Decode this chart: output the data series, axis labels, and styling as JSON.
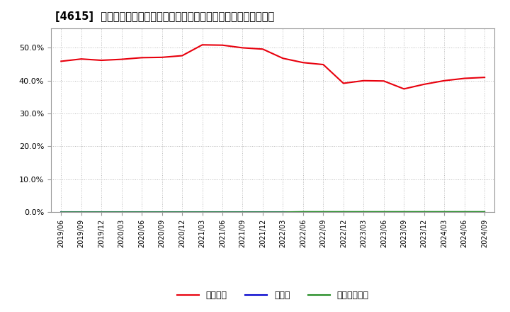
{
  "title": "[4615]  自己資本、のれん、繰延税金資産の総資産に対する比率の推移",
  "x_labels": [
    "2019/06",
    "2019/09",
    "2019/12",
    "2020/03",
    "2020/06",
    "2020/09",
    "2020/12",
    "2021/03",
    "2021/06",
    "2021/09",
    "2021/12",
    "2022/03",
    "2022/06",
    "2022/09",
    "2022/12",
    "2023/03",
    "2023/06",
    "2023/09",
    "2023/12",
    "2024/03",
    "2024/06",
    "2024/09"
  ],
  "equity_ratio": [
    0.459,
    0.466,
    0.462,
    0.465,
    0.47,
    0.471,
    0.476,
    0.509,
    0.508,
    0.5,
    0.496,
    0.468,
    0.455,
    0.449,
    0.392,
    0.4,
    0.399,
    0.375,
    0.389,
    0.4,
    0.407,
    0.41
  ],
  "noren_ratio": [
    0.0,
    0.0,
    0.0,
    0.0,
    0.0,
    0.0,
    0.0,
    0.0,
    0.0,
    0.0,
    0.0,
    0.0,
    0.0,
    0.0,
    0.0,
    0.0,
    0.0,
    0.0,
    0.0,
    0.0,
    0.0,
    0.0
  ],
  "deferred_tax_ratio": [
    0.0,
    0.0,
    0.0,
    0.0,
    0.0,
    0.0,
    0.0,
    0.0,
    0.0,
    0.0,
    0.0,
    0.0,
    0.001,
    0.001,
    0.001,
    0.001,
    0.001,
    0.001,
    0.001,
    0.001,
    0.001,
    0.001
  ],
  "equity_color": "#e8000d",
  "noren_color": "#0000cd",
  "deferred_tax_color": "#228b22",
  "background_color": "#ffffff",
  "plot_bg_color": "#ffffff",
  "grid_color": "#aaaaaa",
  "ylim": [
    0.0,
    0.56
  ],
  "yticks": [
    0.0,
    0.1,
    0.2,
    0.3,
    0.4,
    0.5
  ],
  "legend_labels": [
    "自己資本",
    "のれん",
    "繰延税金資産"
  ]
}
